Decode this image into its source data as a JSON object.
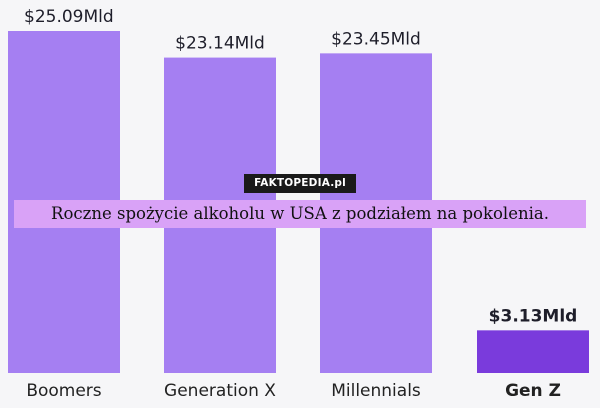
{
  "chart_data": {
    "type": "bar",
    "categories": [
      "Boomers",
      "Generation X",
      "Millennials",
      "Gen Z"
    ],
    "values": [
      25.09,
      23.14,
      23.45,
      3.13
    ],
    "value_labels": [
      "$25.09Mld",
      "$23.14Mld",
      "$23.45Mld",
      "$3.13Mld"
    ],
    "highlight_category": "Gen Z",
    "colors": {
      "bar": "#a57ff2",
      "highlight_bar": "#7a3bdc",
      "background": "#f6f6f8"
    },
    "grid": false,
    "legend": "none"
  },
  "caption": "Roczne spożycie alkoholu w USA z podziałem na pokolenia.",
  "watermark": "FAKTOPEDIA.pl"
}
